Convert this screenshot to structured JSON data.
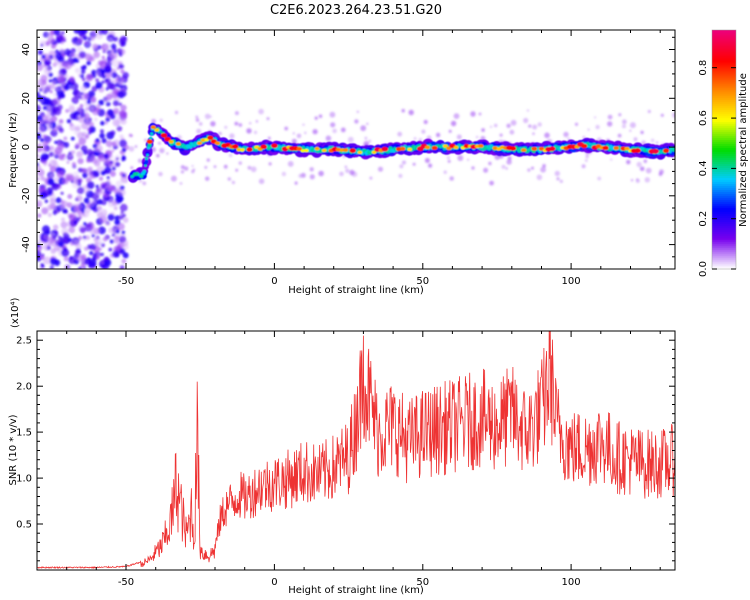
{
  "chart_data": [
    {
      "type": "heatmap",
      "title": "C2E6.2023.264.23.51.G20",
      "xlabel": "Height of straight line (km)",
      "ylabel": "Frequency (Hz)",
      "xlim": [
        -80,
        135
      ],
      "ylim": [
        -50,
        48
      ],
      "xticks": [
        -50,
        0,
        50,
        100
      ],
      "yticks": [
        -40,
        -20,
        0,
        20,
        40
      ],
      "colorbar": {
        "label": "Normalized spectral amplitude",
        "range": [
          0.0,
          0.95
        ],
        "ticks": [
          "0.0",
          "0.2",
          "0.4",
          "0.6",
          "0.8"
        ],
        "colormap": [
          "#ffffff",
          "#7700ee",
          "#0000ff",
          "#00ccff",
          "#00dd00",
          "#ffff00",
          "#ff8800",
          "#ff0000",
          "#ee0077"
        ]
      },
      "ridge": {
        "x": [
          -48,
          -44,
          -41,
          -38,
          -35,
          -30,
          -25,
          -22,
          -18,
          -10,
          0,
          10,
          20,
          30,
          40,
          50,
          60,
          70,
          80,
          90,
          100,
          105,
          110,
          120,
          130,
          135
        ],
        "y": [
          -12,
          -11,
          8,
          6,
          2,
          0,
          2,
          4,
          1,
          -1,
          0,
          -1,
          -1,
          -2,
          -1,
          0,
          0,
          0,
          -1,
          -1,
          0,
          1,
          0,
          -1,
          -2,
          -1
        ]
      }
    },
    {
      "type": "line",
      "xlabel": "Height of straight line (km)",
      "ylabel": "SNR (10 * v/v)",
      "multiplier_label": "(x10⁴)",
      "color": "#ee3333",
      "xlim": [
        -80,
        135
      ],
      "ylim": [
        0,
        2.6
      ],
      "xticks": [
        -50,
        0,
        50,
        100
      ],
      "yticks": [
        0.5,
        1.0,
        1.5,
        2.0,
        2.5
      ],
      "x": [
        -80,
        -60,
        -50,
        -45,
        -42,
        -40,
        -38,
        -36,
        -35,
        -34,
        -33,
        -32,
        -31,
        -30,
        -29,
        -28,
        -27,
        -26,
        -25,
        -24,
        -22,
        -20,
        -18,
        -16,
        -14,
        -12,
        -10,
        -8,
        -5,
        0,
        5,
        10,
        15,
        20,
        25,
        28,
        30,
        35,
        40,
        45,
        50,
        55,
        60,
        65,
        70,
        75,
        80,
        85,
        90,
        93,
        95,
        100,
        105,
        110,
        115,
        120,
        125,
        130,
        135
      ],
      "y": [
        0.02,
        0.02,
        0.03,
        0.08,
        0.15,
        0.25,
        0.35,
        0.55,
        0.7,
        0.9,
        1.3,
        1.0,
        0.8,
        0.5,
        0.6,
        0.9,
        0.4,
        2.05,
        0.3,
        0.25,
        0.2,
        0.3,
        0.7,
        0.85,
        0.9,
        1.0,
        0.95,
        1.0,
        1.1,
        1.15,
        1.2,
        1.3,
        1.25,
        1.35,
        1.5,
        2.0,
        2.55,
        1.8,
        1.9,
        1.7,
        1.8,
        1.85,
        1.9,
        1.95,
        2.0,
        1.9,
        2.05,
        1.8,
        2.1,
        2.6,
        1.9,
        1.6,
        1.6,
        1.7,
        1.5,
        1.45,
        1.4,
        1.4,
        1.45
      ]
    }
  ]
}
